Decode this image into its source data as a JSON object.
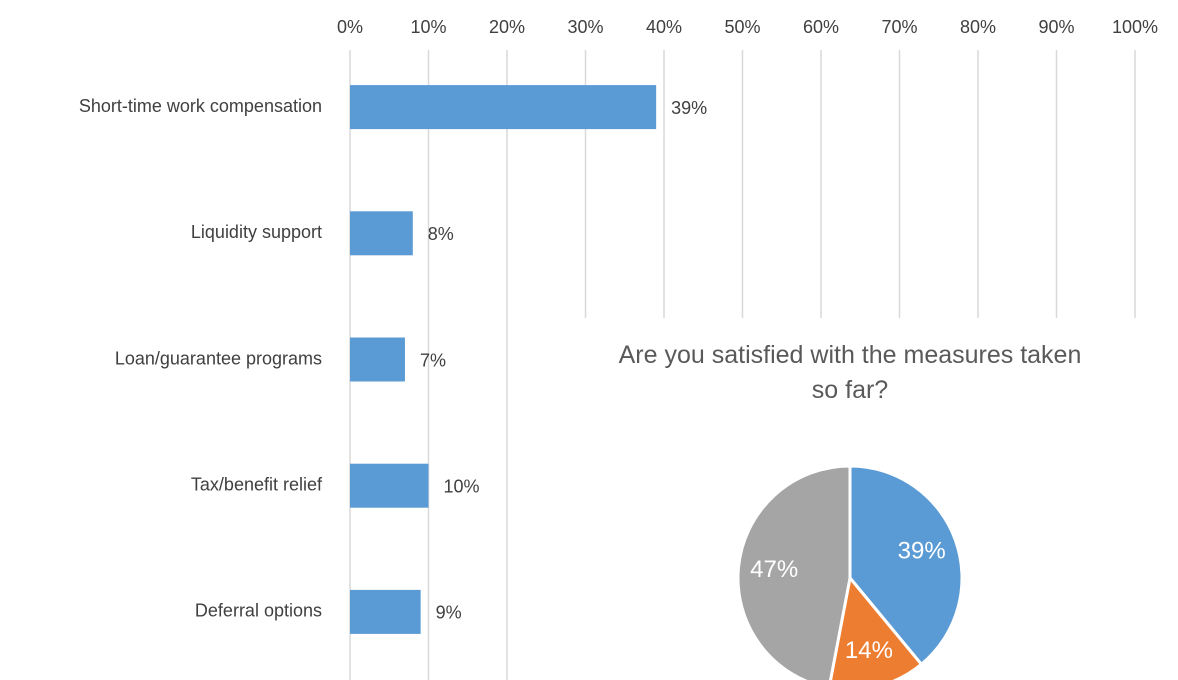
{
  "chart_data": [
    {
      "type": "bar",
      "orientation": "horizontal",
      "categories": [
        "Short-time work compensation",
        "Liquidity support",
        "Loan/guarantee programs",
        "Tax/benefit relief",
        "Deferral options"
      ],
      "values": [
        39,
        8,
        7,
        10,
        9
      ],
      "value_labels": [
        "39%",
        "8%",
        "7%",
        "10%",
        "9%"
      ],
      "color": "#5b9bd5",
      "xlim": [
        0,
        100
      ],
      "xticks": [
        {
          "value": 0,
          "label": "0%"
        },
        {
          "value": 10,
          "label": "10%"
        },
        {
          "value": 20,
          "label": "20%"
        },
        {
          "value": 30,
          "label": "30%"
        },
        {
          "value": 40,
          "label": "40%"
        },
        {
          "value": 50,
          "label": "50%"
        },
        {
          "value": 60,
          "label": "60%"
        },
        {
          "value": 70,
          "label": "70%"
        },
        {
          "value": 80,
          "label": "80%"
        },
        {
          "value": 90,
          "label": "90%"
        },
        {
          "value": 100,
          "label": "100%"
        }
      ],
      "grid": true
    },
    {
      "type": "pie",
      "title": "Are you satisfied with the measures taken so far?",
      "values": [
        39,
        14,
        47
      ],
      "value_labels": [
        "39%",
        "14%",
        "47%"
      ],
      "colors": [
        "#5b9bd5",
        "#ed7d31",
        "#a5a5a5"
      ]
    }
  ]
}
